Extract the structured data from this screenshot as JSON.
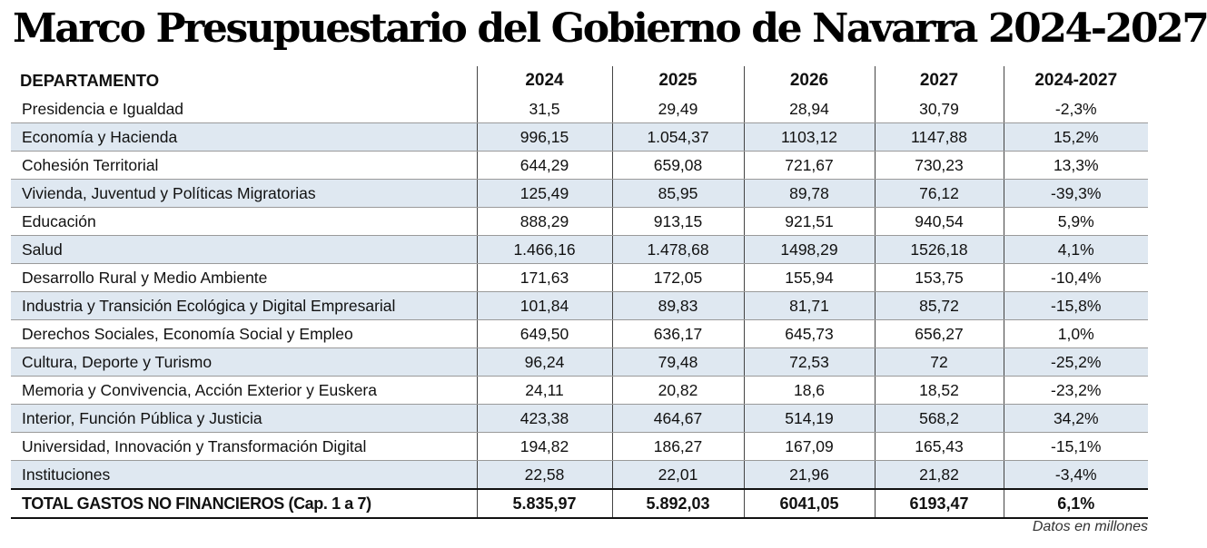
{
  "title": "Marco Presupuestario del Gobierno de Navarra 2024-2027",
  "table": {
    "headers": [
      "DEPARTAMENTO",
      "2024",
      "2025",
      "2026",
      "2027",
      "2024-2027"
    ],
    "rows": [
      [
        "Presidencia e Igualdad",
        "31,5",
        "29,49",
        "28,94",
        "30,79",
        "-2,3%"
      ],
      [
        "Economía y Hacienda",
        "996,15",
        "1.054,37",
        "1103,12",
        "1147,88",
        "15,2%"
      ],
      [
        "Cohesión Territorial",
        "644,29",
        "659,08",
        "721,67",
        "730,23",
        "13,3%"
      ],
      [
        "Vivienda, Juventud y Políticas Migratorias",
        "125,49",
        "85,95",
        "89,78",
        "76,12",
        "-39,3%"
      ],
      [
        "Educación",
        "888,29",
        "913,15",
        "921,51",
        "940,54",
        "5,9%"
      ],
      [
        "Salud",
        "1.466,16",
        "1.478,68",
        "1498,29",
        "1526,18",
        "4,1%"
      ],
      [
        "Desarrollo Rural y Medio Ambiente",
        "171,63",
        "172,05",
        "155,94",
        "153,75",
        "-10,4%"
      ],
      [
        "Industria y Transición Ecológica y Digital Empresarial",
        "101,84",
        "89,83",
        "81,71",
        "85,72",
        "-15,8%"
      ],
      [
        "Derechos Sociales, Economía Social y Empleo",
        "649,50",
        "636,17",
        "645,73",
        "656,27",
        "1,0%"
      ],
      [
        "Cultura, Deporte y Turismo",
        "96,24",
        "79,48",
        "72,53",
        "72",
        "-25,2%"
      ],
      [
        "Memoria y Convivencia, Acción Exterior y Euskera",
        "24,11",
        "20,82",
        "18,6",
        "18,52",
        "-23,2%"
      ],
      [
        "Interior, Función Pública y Justicia",
        "423,38",
        "464,67",
        "514,19",
        "568,2",
        "34,2%"
      ],
      [
        "Universidad, Innovación y Transformación Digital",
        "194,82",
        "186,27",
        "167,09",
        "165,43",
        "-15,1%"
      ],
      [
        "Instituciones",
        "22,58",
        "22,01",
        "21,96",
        "21,82",
        "-3,4%"
      ]
    ],
    "total": [
      "TOTAL GASTOS NO FINANCIEROS (Cap. 1 a 7)",
      "5.835,97",
      "5.892,03",
      "6041,05",
      "6193,47",
      "6,1%"
    ]
  },
  "footnote": "Datos en millones",
  "colors": {
    "shaded_row": "#dfe8f1",
    "text": "#111111"
  }
}
